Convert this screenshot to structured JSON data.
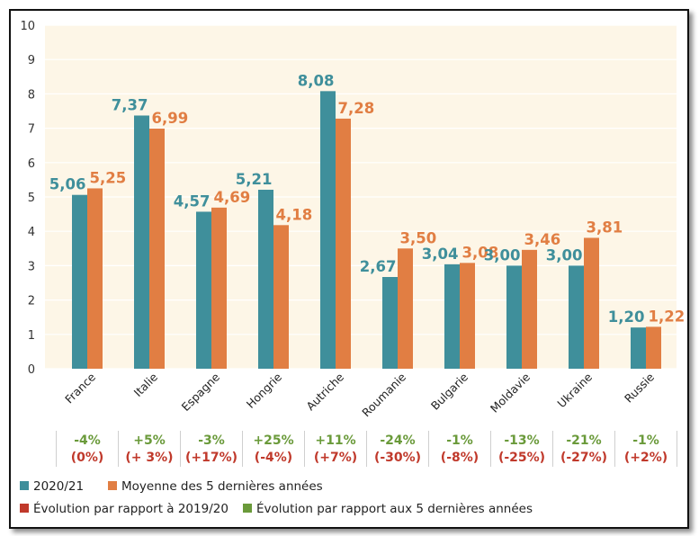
{
  "chart_data": {
    "type": "bar",
    "categories": [
      "France",
      "Italie",
      "Espagne",
      "Hongrie",
      "Autriche",
      "Roumanie",
      "Bulgarie",
      "Moldavie",
      "Ukraine",
      "Russie"
    ],
    "series": [
      {
        "name": "2020/21",
        "values": [
          5.06,
          7.37,
          4.57,
          5.21,
          8.08,
          2.67,
          3.04,
          3.0,
          3.0,
          1.2
        ],
        "labels": [
          "5,06",
          "7,37",
          "4,57",
          "5,21",
          "8,08",
          "2,67",
          "3,04",
          "3,00",
          "3,00",
          "1,20"
        ],
        "color": "#3f8f9b"
      },
      {
        "name": "Moyenne des 5 dernières années",
        "values": [
          5.25,
          6.99,
          4.69,
          4.18,
          7.28,
          3.5,
          3.08,
          3.46,
          3.81,
          1.22
        ],
        "labels": [
          "5,25",
          "6,99",
          "4,69",
          "4,18",
          "7,28",
          "3,50",
          "3,08",
          "3,46",
          "3,81",
          "1,22"
        ],
        "color": "#e17e43"
      }
    ],
    "ylim": [
      0,
      10
    ],
    "yticks": [
      "0",
      "1",
      "2",
      "3",
      "4",
      "5",
      "6",
      "7",
      "8",
      "9",
      "10"
    ],
    "grid": true,
    "evolution_5yr": [
      "-4%",
      "+5%",
      "-3%",
      "+25%",
      "+11%",
      "-24%",
      "-1%",
      "-13%",
      "-21%",
      "-1%"
    ],
    "evolution_prev": [
      "(0%)",
      "(+ 3%)",
      "(+17%)",
      "(-4%)",
      "(+7%)",
      "(-30%)",
      "(-8%)",
      "(-25%)",
      "(-27%)",
      "(+2%)"
    ],
    "legend": [
      {
        "label": "2020/21",
        "color": "#3f8f9b"
      },
      {
        "label": "Moyenne des 5 dernières années",
        "color": "#e17e43"
      },
      {
        "label": "Évolution par rapport à 2019/20",
        "color": "#c0392b"
      },
      {
        "label": "Évolution par rapport aux 5 dernières années",
        "color": "#6a9a3a"
      }
    ],
    "colors": {
      "plot_bg": "#fdf6e7",
      "grid": "#ffffff",
      "evolution_5yr_text": "#6a9a3a",
      "evolution_prev_text": "#c0392b",
      "separator": "#cfcfcf"
    }
  }
}
